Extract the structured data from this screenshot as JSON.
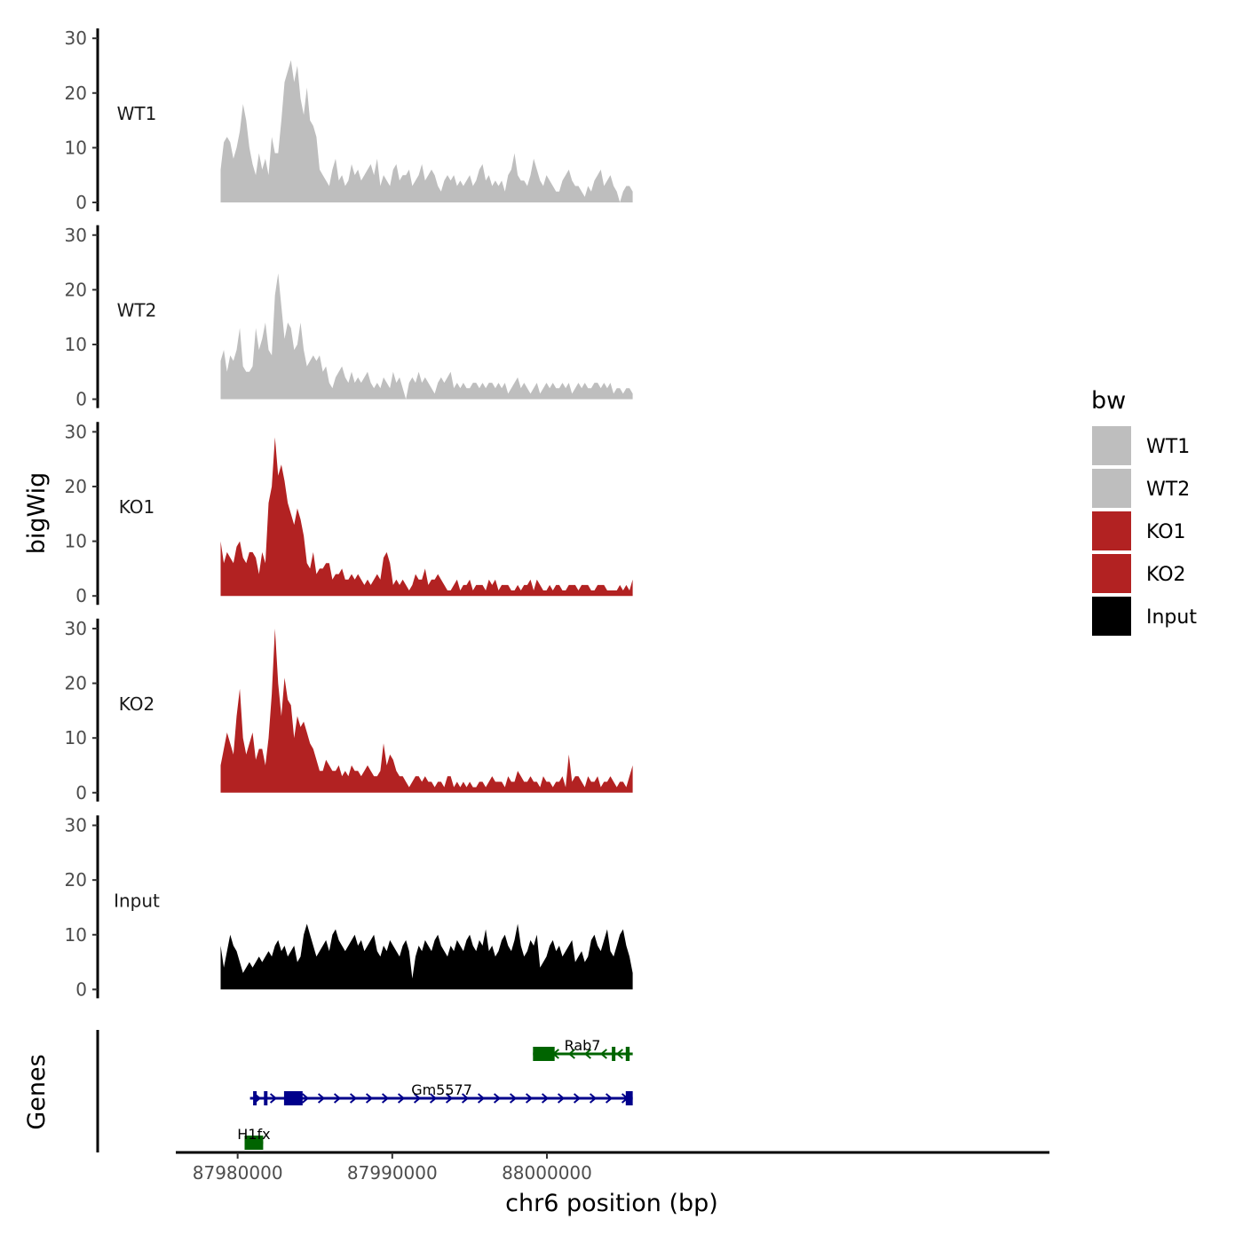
{
  "chart_data": {
    "type": "area",
    "title": "",
    "xlabel": "chr6 position (bp)",
    "ylabel": "bigWig",
    "genes_label": "Genes",
    "xlim": [
      87976000,
      88032500
    ],
    "x_ticks": [
      {
        "value": 87980000,
        "label": "87980000"
      },
      {
        "value": 87990000,
        "label": "87990000"
      },
      {
        "value": 88000000,
        "label": "88000000"
      }
    ],
    "y_ticks": [
      {
        "value": 0,
        "label": "0"
      },
      {
        "value": 10,
        "label": "10"
      },
      {
        "value": 20,
        "label": "20"
      },
      {
        "value": 30,
        "label": "30"
      }
    ],
    "ylim": [
      0,
      31
    ],
    "track_start": 87978900,
    "track_end": 88005550,
    "tracks": [
      {
        "name": "WT1",
        "color": "#bebebe",
        "values": [
          6,
          11,
          12,
          11,
          8,
          10,
          13,
          18,
          15,
          10,
          7,
          5,
          9,
          6,
          8,
          5,
          12,
          9,
          9,
          15,
          22,
          24,
          26,
          22,
          25,
          19,
          16,
          21,
          15,
          14,
          12,
          6,
          5,
          4,
          3,
          6,
          8,
          4,
          5,
          3,
          4,
          7,
          5,
          6,
          4,
          5,
          6,
          7,
          5,
          8,
          3,
          5,
          4,
          3,
          6,
          7,
          4,
          5,
          5,
          6,
          3,
          4,
          5,
          7,
          4,
          5,
          6,
          5,
          3,
          2,
          4,
          5,
          4,
          5,
          3,
          4,
          3,
          4,
          5,
          3,
          4,
          6,
          7,
          4,
          5,
          3,
          4,
          3,
          4,
          2,
          5,
          6,
          9,
          5,
          4,
          4,
          3,
          5,
          8,
          6,
          4,
          3,
          5,
          4,
          3,
          2,
          2,
          4,
          5,
          6,
          4,
          3,
          3,
          2,
          1,
          3,
          2,
          4,
          5,
          6,
          3,
          4,
          5,
          3,
          2,
          0,
          2,
          3,
          3,
          2
        ]
      },
      {
        "name": "WT2",
        "color": "#bebebe",
        "values": [
          7,
          9,
          5,
          8,
          7,
          9,
          13,
          6,
          5,
          5,
          6,
          13,
          9,
          11,
          14,
          9,
          8,
          19,
          23,
          17,
          11,
          14,
          13,
          9,
          10,
          14,
          9,
          6,
          7,
          8,
          7,
          8,
          5,
          6,
          3,
          2,
          4,
          5,
          6,
          4,
          3,
          5,
          3,
          4,
          3,
          4,
          5,
          3,
          2,
          3,
          2,
          4,
          3,
          2,
          5,
          3,
          4,
          2,
          0,
          3,
          4,
          3,
          5,
          3,
          4,
          3,
          2,
          1,
          3,
          4,
          3,
          4,
          5,
          2,
          3,
          2,
          3,
          2,
          2,
          3,
          3,
          2,
          3,
          2,
          3,
          3,
          2,
          3,
          2,
          3,
          1,
          2,
          3,
          4,
          2,
          3,
          2,
          1,
          2,
          3,
          1,
          2,
          3,
          2,
          3,
          2,
          2,
          3,
          2,
          3,
          1,
          2,
          3,
          2,
          3,
          2,
          2,
          3,
          3,
          2,
          3,
          2,
          3,
          1,
          2,
          2,
          1,
          2,
          2,
          1
        ]
      },
      {
        "name": "KO1",
        "color": "#b22222",
        "values": [
          10,
          6,
          8,
          7,
          6,
          9,
          10,
          7,
          6,
          8,
          8,
          7,
          4,
          8,
          6,
          17,
          20,
          29,
          22,
          24,
          21,
          17,
          15,
          13,
          16,
          14,
          11,
          6,
          5,
          8,
          4,
          5,
          5,
          6,
          6,
          3,
          4,
          4,
          5,
          3,
          3,
          4,
          3,
          4,
          3,
          2,
          3,
          2,
          3,
          4,
          3,
          7,
          8,
          6,
          2,
          3,
          2,
          3,
          2,
          1,
          2,
          4,
          3,
          3,
          5,
          2,
          3,
          3,
          4,
          3,
          2,
          1,
          1,
          2,
          3,
          1,
          2,
          2,
          3,
          1,
          2,
          2,
          2,
          1,
          3,
          2,
          3,
          1,
          2,
          2,
          2,
          1,
          1,
          2,
          1,
          2,
          2,
          3,
          1,
          3,
          2,
          1,
          1,
          2,
          1,
          2,
          2,
          1,
          1,
          2,
          2,
          2,
          1,
          2,
          2,
          2,
          1,
          1,
          2,
          2,
          2,
          1,
          1,
          1,
          1,
          2,
          1,
          2,
          1,
          3
        ]
      },
      {
        "name": "KO2",
        "color": "#b22222",
        "values": [
          5,
          8,
          11,
          9,
          7,
          14,
          19,
          10,
          7,
          9,
          11,
          6,
          8,
          8,
          5,
          10,
          18,
          30,
          20,
          14,
          21,
          17,
          16,
          10,
          14,
          12,
          13,
          11,
          9,
          8,
          6,
          4,
          4,
          6,
          5,
          4,
          4,
          5,
          3,
          4,
          3,
          5,
          4,
          4,
          3,
          4,
          5,
          4,
          3,
          3,
          4,
          9,
          5,
          7,
          6,
          4,
          3,
          3,
          2,
          1,
          2,
          3,
          3,
          2,
          3,
          2,
          2,
          1,
          2,
          2,
          1,
          3,
          3,
          1,
          2,
          1,
          2,
          1,
          2,
          1,
          1,
          2,
          2,
          1,
          2,
          3,
          2,
          2,
          2,
          1,
          3,
          2,
          2,
          4,
          3,
          2,
          2,
          3,
          2,
          2,
          1,
          3,
          2,
          2,
          1,
          2,
          2,
          3,
          1,
          7,
          2,
          3,
          3,
          2,
          1,
          3,
          2,
          2,
          3,
          1,
          2,
          2,
          3,
          2,
          1,
          2,
          2,
          1,
          3,
          5
        ]
      },
      {
        "name": "Input",
        "color": "#000000",
        "values": [
          8,
          4,
          7,
          10,
          8,
          7,
          5,
          3,
          4,
          5,
          4,
          5,
          6,
          5,
          6,
          7,
          6,
          8,
          9,
          7,
          8,
          6,
          7,
          8,
          5,
          6,
          10,
          12,
          10,
          8,
          6,
          7,
          8,
          9,
          7,
          10,
          11,
          9,
          8,
          7,
          8,
          9,
          10,
          8,
          9,
          7,
          8,
          9,
          10,
          7,
          6,
          8,
          7,
          9,
          8,
          7,
          6,
          8,
          9,
          7,
          2,
          6,
          8,
          7,
          9,
          8,
          7,
          9,
          10,
          8,
          7,
          6,
          8,
          7,
          9,
          8,
          7,
          9,
          10,
          8,
          7,
          9,
          8,
          11,
          7,
          8,
          6,
          7,
          9,
          10,
          8,
          7,
          9,
          12,
          8,
          6,
          7,
          9,
          8,
          10,
          4,
          5,
          6,
          8,
          9,
          7,
          8,
          6,
          7,
          8,
          9,
          5,
          6,
          7,
          5,
          6,
          9,
          10,
          8,
          7,
          9,
          11,
          7,
          6,
          8,
          10,
          11,
          8,
          6,
          3
        ]
      }
    ],
    "legend": {
      "title": "bw",
      "position": "right",
      "entries": [
        {
          "label": "WT1",
          "color": "#bebebe"
        },
        {
          "label": "WT2",
          "color": "#bebebe"
        },
        {
          "label": "KO1",
          "color": "#b22222"
        },
        {
          "label": "KO2",
          "color": "#b22222"
        },
        {
          "label": "Input",
          "color": "#000000"
        }
      ]
    },
    "genes": [
      {
        "name": "Rab7",
        "strand": "-",
        "color": "#006400",
        "row": 1,
        "start": 87999100,
        "end": 88005550,
        "exons": [
          {
            "start": 87999100,
            "end": 88000500
          },
          {
            "start": 88004200,
            "end": 88004400
          },
          {
            "start": 88005100,
            "end": 88005350
          }
        ],
        "label_pos": 88002300
      },
      {
        "name": "Gm5577",
        "strand": "+",
        "color": "#00008b",
        "row": 2,
        "start": 87980800,
        "end": 88005550,
        "exons": [
          {
            "start": 87981000,
            "end": 87981200
          },
          {
            "start": 87981700,
            "end": 87981900
          },
          {
            "start": 87983000,
            "end": 87984200
          },
          {
            "start": 88005100,
            "end": 88005550
          }
        ],
        "label_pos": 87993200
      },
      {
        "name": "H1fx",
        "strand": "-",
        "color": "#006400",
        "row": 3,
        "start": 87980450,
        "end": 87981650,
        "exons": [
          {
            "start": 87980450,
            "end": 87981650
          }
        ],
        "label_pos": 87981050
      }
    ]
  }
}
